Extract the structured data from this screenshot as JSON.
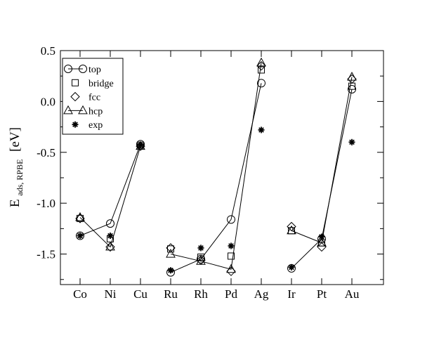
{
  "chart_data": {
    "type": "scatter",
    "title": "",
    "xlabel": "",
    "ylabel": "E",
    "ylabel_sub": "ads, RPBE",
    "ylabel_unit": "[eV]",
    "categories": [
      "Co",
      "Ni",
      "Cu",
      "Ru",
      "Rh",
      "Pd",
      "Ag",
      "Ir",
      "Pt",
      "Au"
    ],
    "ylim": [
      -1.8,
      0.5
    ],
    "yticks": [
      0.5,
      0.0,
      -0.5,
      -1.0,
      -1.5
    ],
    "ytick_labels": [
      "0.5",
      "0.0",
      "-0.5",
      "-1.0",
      "-1.5"
    ],
    "legend_position": "top-left",
    "grid": false,
    "line_groups": [
      [
        0,
        1,
        2
      ],
      [
        3,
        4,
        5,
        6
      ],
      [
        7,
        8,
        9
      ]
    ],
    "series": [
      {
        "name": "top",
        "marker": "circle",
        "connected": true,
        "values": [
          -1.32,
          -1.2,
          -0.42,
          -1.68,
          -1.55,
          -1.16,
          0.18,
          -1.64,
          -1.35,
          0.12
        ]
      },
      {
        "name": "bridge",
        "marker": "square",
        "connected": false,
        "values": [
          -1.15,
          -1.35,
          -0.43,
          -1.45,
          -1.53,
          -1.52,
          0.31,
          -1.27,
          -1.39,
          0.15
        ]
      },
      {
        "name": "fcc",
        "marker": "diamond",
        "connected": false,
        "values": [
          -1.15,
          -1.43,
          -0.44,
          -1.44,
          -1.56,
          -1.67,
          0.35,
          -1.23,
          -1.43,
          0.22
        ]
      },
      {
        "name": "hcp",
        "marker": "triangle",
        "connected": true,
        "values": [
          -1.14,
          -1.43,
          -0.44,
          -1.5,
          -1.57,
          -1.65,
          0.38,
          -1.27,
          -1.39,
          0.24
        ]
      },
      {
        "name": "exp",
        "marker": "star",
        "connected": false,
        "values": [
          -1.32,
          -1.32,
          -0.43,
          -1.66,
          -1.44,
          -1.42,
          -0.28,
          -1.63,
          -1.33,
          -0.4
        ]
      }
    ]
  }
}
